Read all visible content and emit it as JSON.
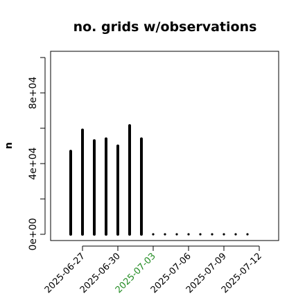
{
  "chart_data": {
    "type": "bar",
    "title": "no. grids w/observations",
    "xlabel": "",
    "ylabel": "n",
    "x_start_date": "2025-06-26",
    "values": [
      47000,
      59000,
      53000,
      54000,
      50000,
      61500,
      54000,
      0,
      0,
      0,
      0,
      0,
      0,
      0,
      0,
      0
    ],
    "ylim": [
      0,
      100000
    ],
    "y_ticks": [
      0,
      40000,
      80000
    ],
    "y_tick_labels": [
      "0e+00",
      "4e+04",
      "8e+04"
    ],
    "x_ticks": [
      "2025-06-27",
      "2025-06-30",
      "2025-07-03",
      "2025-07-06",
      "2025-07-09",
      "2025-07-12"
    ],
    "highlight_tick": "2025-07-03",
    "colors": {
      "bars": "#000000",
      "highlight": "#228B22",
      "tick_text": "#000000"
    },
    "grid": false
  }
}
